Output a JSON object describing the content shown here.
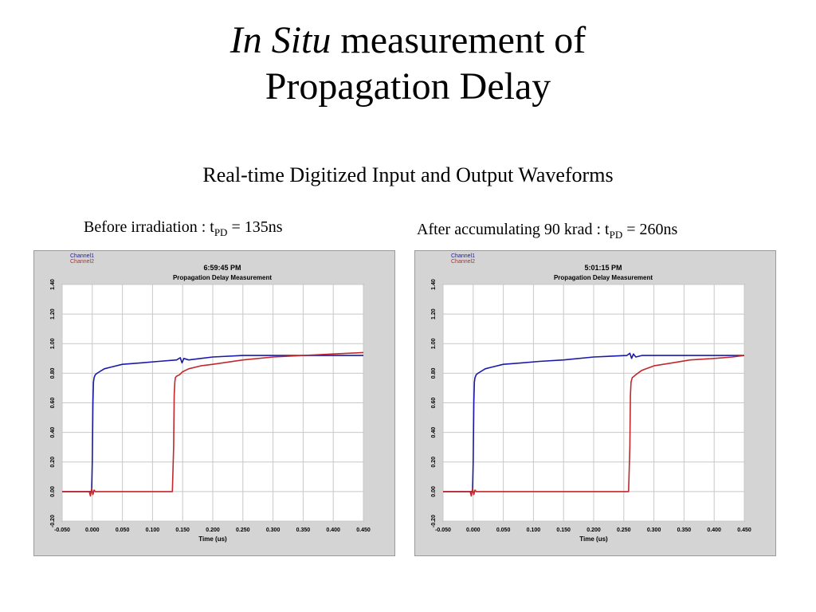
{
  "title": {
    "italic_part": "In Situ",
    "rest_line1": "measurement of",
    "line2": "Propagation Delay"
  },
  "subtitle": "Real-time Digitized Input and Output Waveforms",
  "captions": [
    {
      "prefix": "Before irradiation : t",
      "sub": "PD",
      "suffix": " = 135ns"
    },
    {
      "prefix": "After accumulating 90 krad : t",
      "sub": "PD",
      "suffix": " = 260ns"
    }
  ],
  "chart_data": [
    {
      "type": "line",
      "timestamp": "6:59:45 PM",
      "title": "Propagation Delay Measurement",
      "xlabel": "Time (us)",
      "ylabel": "",
      "xlim": [
        -0.05,
        0.45
      ],
      "ylim": [
        -0.2,
        1.4
      ],
      "x_ticks": [
        "-0.050",
        "0.000",
        "0.050",
        "0.100",
        "0.150",
        "0.200",
        "0.250",
        "0.300",
        "0.350",
        "0.400",
        "0.450"
      ],
      "y_ticks": [
        "-0.20",
        "0.00",
        "0.20",
        "0.40",
        "0.60",
        "0.80",
        "1.00",
        "1.20",
        "1.40"
      ],
      "grid": true,
      "legend_position": "top-left",
      "series": [
        {
          "name": "Channel1",
          "color": "#1a1aa6",
          "x": [
            -0.05,
            -0.001,
            0.0,
            0.001,
            0.002,
            0.003,
            0.005,
            0.008,
            0.012,
            0.02,
            0.03,
            0.05,
            0.08,
            0.11,
            0.14,
            0.146,
            0.149,
            0.152,
            0.16,
            0.18,
            0.2,
            0.25,
            0.3,
            0.35,
            0.4,
            0.45
          ],
          "values": [
            0.0,
            0.0,
            0.2,
            0.6,
            0.74,
            0.77,
            0.79,
            0.8,
            0.81,
            0.83,
            0.84,
            0.86,
            0.87,
            0.88,
            0.89,
            0.905,
            0.87,
            0.9,
            0.89,
            0.9,
            0.91,
            0.92,
            0.92,
            0.92,
            0.92,
            0.92
          ]
        },
        {
          "name": "Channel2",
          "color": "#c0292b",
          "x": [
            -0.05,
            -0.005,
            -0.003,
            -0.001,
            0.001,
            0.003,
            0.005,
            0.01,
            0.05,
            0.1,
            0.133,
            0.135,
            0.136,
            0.137,
            0.138,
            0.14,
            0.145,
            0.15,
            0.16,
            0.18,
            0.2,
            0.25,
            0.3,
            0.35,
            0.4,
            0.45
          ],
          "values": [
            0.0,
            0.0,
            -0.03,
            0.02,
            -0.02,
            0.01,
            0.0,
            0.0,
            0.0,
            0.0,
            0.0,
            0.3,
            0.65,
            0.74,
            0.77,
            0.78,
            0.79,
            0.81,
            0.83,
            0.85,
            0.86,
            0.89,
            0.91,
            0.92,
            0.93,
            0.94
          ]
        }
      ]
    },
    {
      "type": "line",
      "timestamp": "5:01:15 PM",
      "title": "Propagation Delay Measurement",
      "xlabel": "Time (us)",
      "ylabel": "",
      "xlim": [
        -0.05,
        0.45
      ],
      "ylim": [
        -0.2,
        1.4
      ],
      "x_ticks": [
        "-0.050",
        "0.000",
        "0.050",
        "0.100",
        "0.150",
        "0.200",
        "0.250",
        "0.300",
        "0.350",
        "0.400",
        "0.450"
      ],
      "y_ticks": [
        "-0.20",
        "0.00",
        "0.20",
        "0.40",
        "0.60",
        "0.80",
        "1.00",
        "1.20",
        "1.40"
      ],
      "grid": true,
      "legend_position": "top-left",
      "series": [
        {
          "name": "Channel1",
          "color": "#1a1aa6",
          "x": [
            -0.05,
            -0.001,
            0.0,
            0.001,
            0.002,
            0.003,
            0.005,
            0.008,
            0.012,
            0.02,
            0.03,
            0.05,
            0.08,
            0.11,
            0.15,
            0.2,
            0.255,
            0.26,
            0.263,
            0.266,
            0.27,
            0.28,
            0.3,
            0.35,
            0.4,
            0.45
          ],
          "values": [
            0.0,
            0.0,
            0.2,
            0.6,
            0.74,
            0.77,
            0.79,
            0.8,
            0.81,
            0.83,
            0.84,
            0.86,
            0.87,
            0.88,
            0.89,
            0.91,
            0.92,
            0.935,
            0.9,
            0.93,
            0.91,
            0.92,
            0.92,
            0.92,
            0.92,
            0.92
          ]
        },
        {
          "name": "Channel2",
          "color": "#c0292b",
          "x": [
            -0.05,
            -0.005,
            -0.003,
            -0.001,
            0.001,
            0.003,
            0.005,
            0.01,
            0.05,
            0.1,
            0.2,
            0.258,
            0.26,
            0.261,
            0.262,
            0.264,
            0.267,
            0.27,
            0.28,
            0.3,
            0.33,
            0.36,
            0.4,
            0.43,
            0.45
          ],
          "values": [
            0.0,
            0.0,
            -0.03,
            0.02,
            -0.02,
            0.01,
            0.0,
            0.0,
            0.0,
            0.0,
            0.0,
            0.0,
            0.3,
            0.65,
            0.74,
            0.77,
            0.78,
            0.79,
            0.82,
            0.85,
            0.87,
            0.89,
            0.9,
            0.91,
            0.92
          ]
        }
      ]
    }
  ]
}
